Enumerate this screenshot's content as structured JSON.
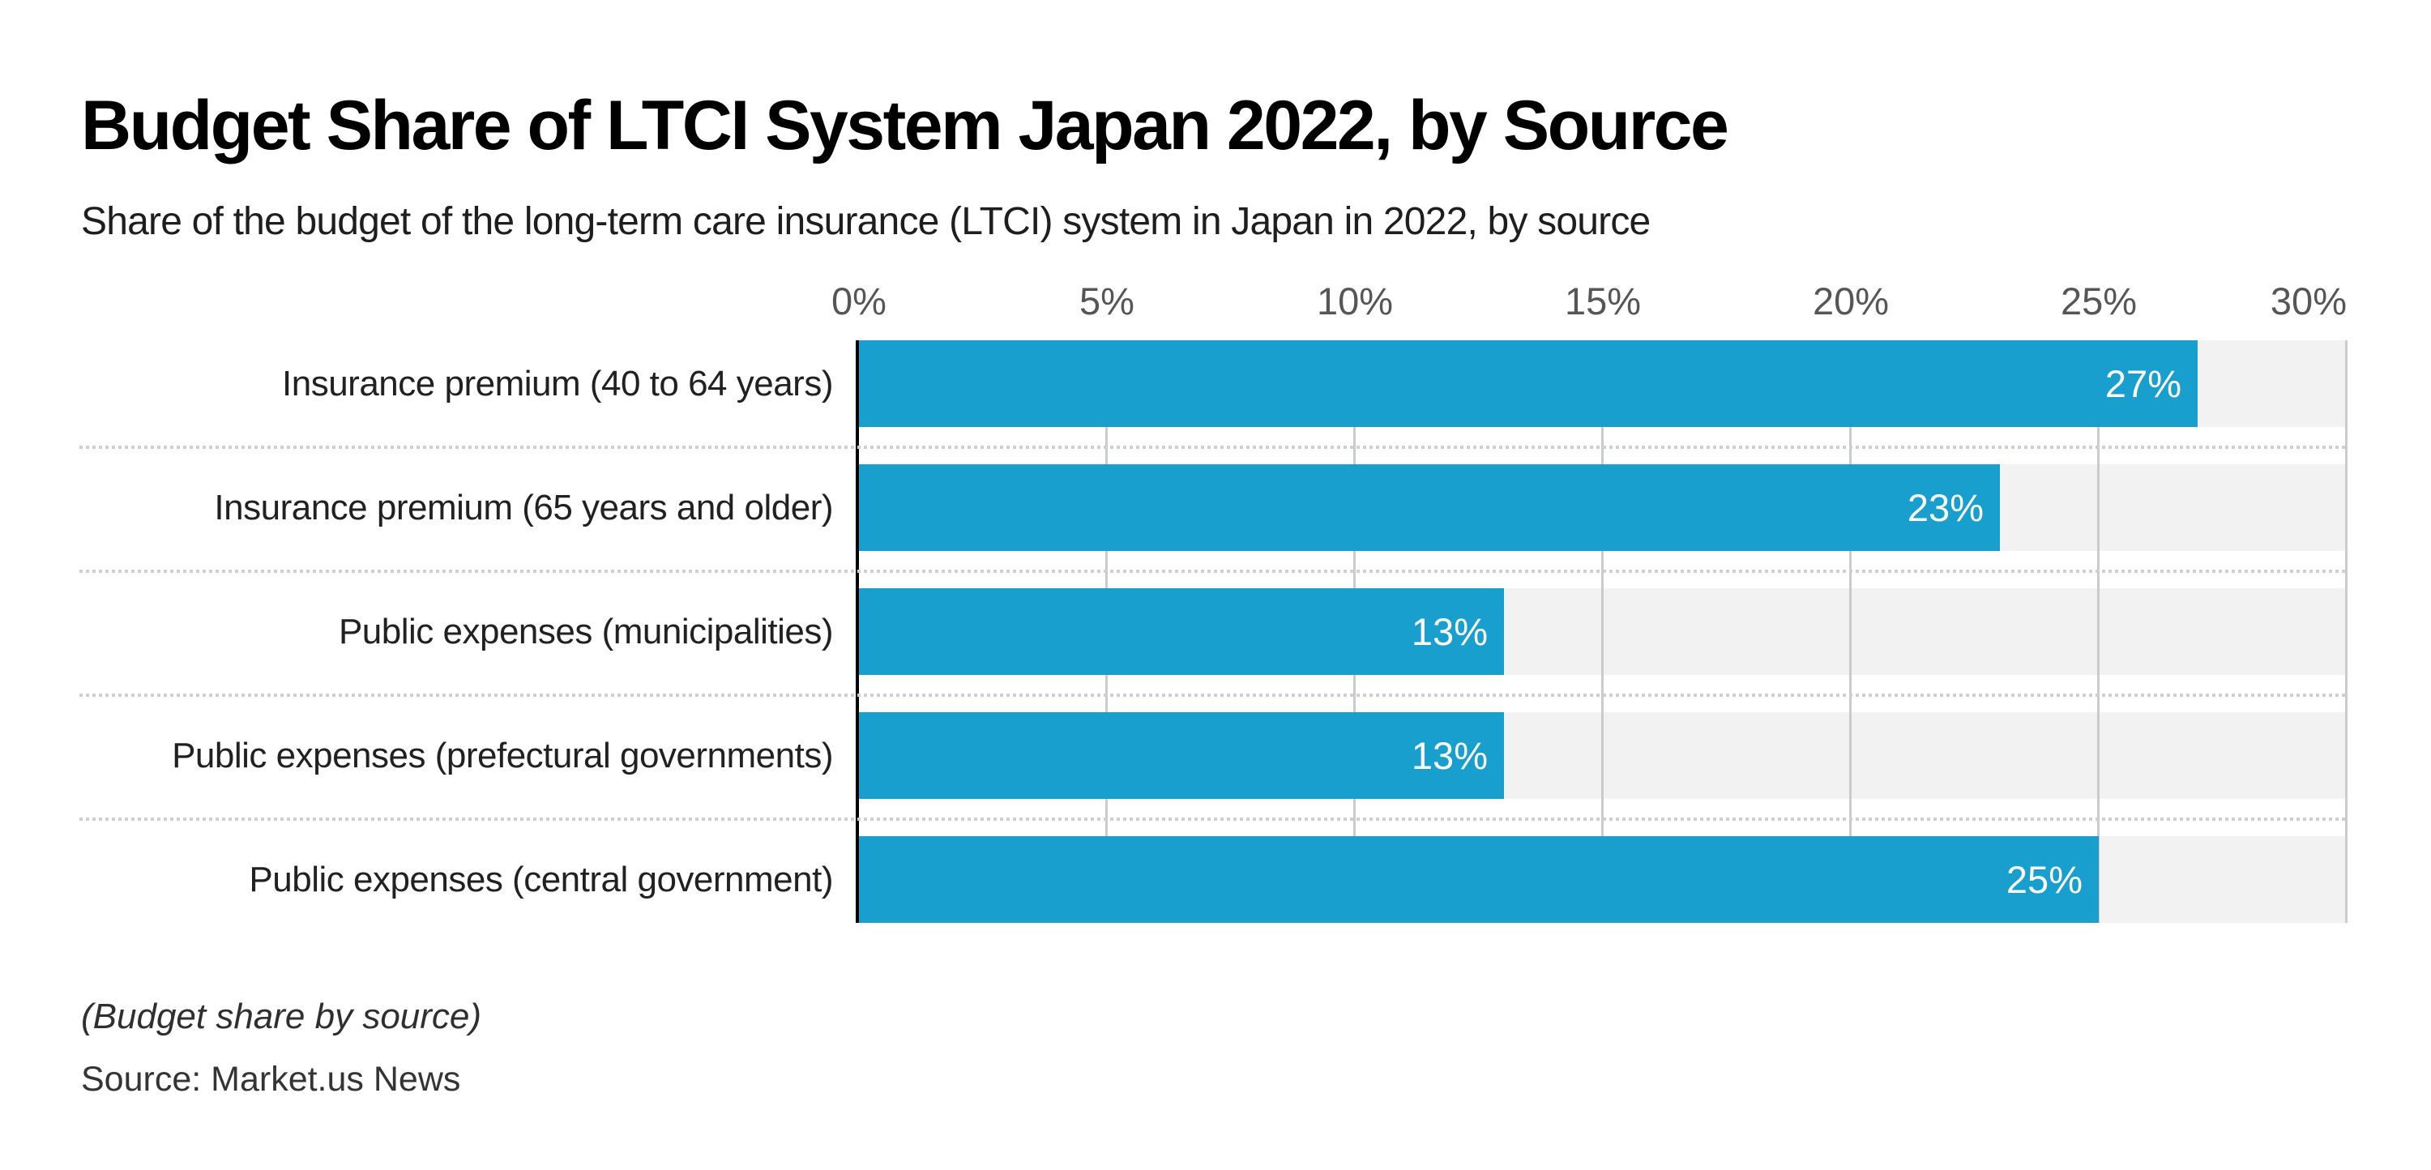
{
  "header": {
    "title": "Budget Share of LTCI System Japan 2022, by Source",
    "subtitle": "Share of the budget of the long-term care insurance (LTCI) system in Japan in 2022, by source"
  },
  "chart_data": {
    "type": "bar",
    "orientation": "horizontal",
    "title": "Budget Share of LTCI System Japan 2022, by Source",
    "categories": [
      "Insurance premium (40 to 64 years)",
      "Insurance premium (65 years and older)",
      "Public expenses (municipalities)",
      "Public expenses (prefectural governments)",
      "Public expenses (central government)"
    ],
    "values": [
      27,
      23,
      13,
      13,
      25
    ],
    "value_labels": [
      "27%",
      "23%",
      "13%",
      "13%",
      "25%"
    ],
    "x_ticks": [
      "0%",
      "5%",
      "10%",
      "15%",
      "20%",
      "25%",
      "30%"
    ],
    "xlim": [
      0,
      30
    ],
    "xlabel": "",
    "ylabel": "",
    "grid": true,
    "legend": false,
    "bar_color": "#199fcd",
    "track_color": "#f2f2f2",
    "gridline_color": "#cbcbcb",
    "value_label_color": "#ffffff",
    "value_label_position": "inside-end"
  },
  "footer": {
    "note": "(Budget share by source)",
    "source": "Source: Market.us News"
  }
}
